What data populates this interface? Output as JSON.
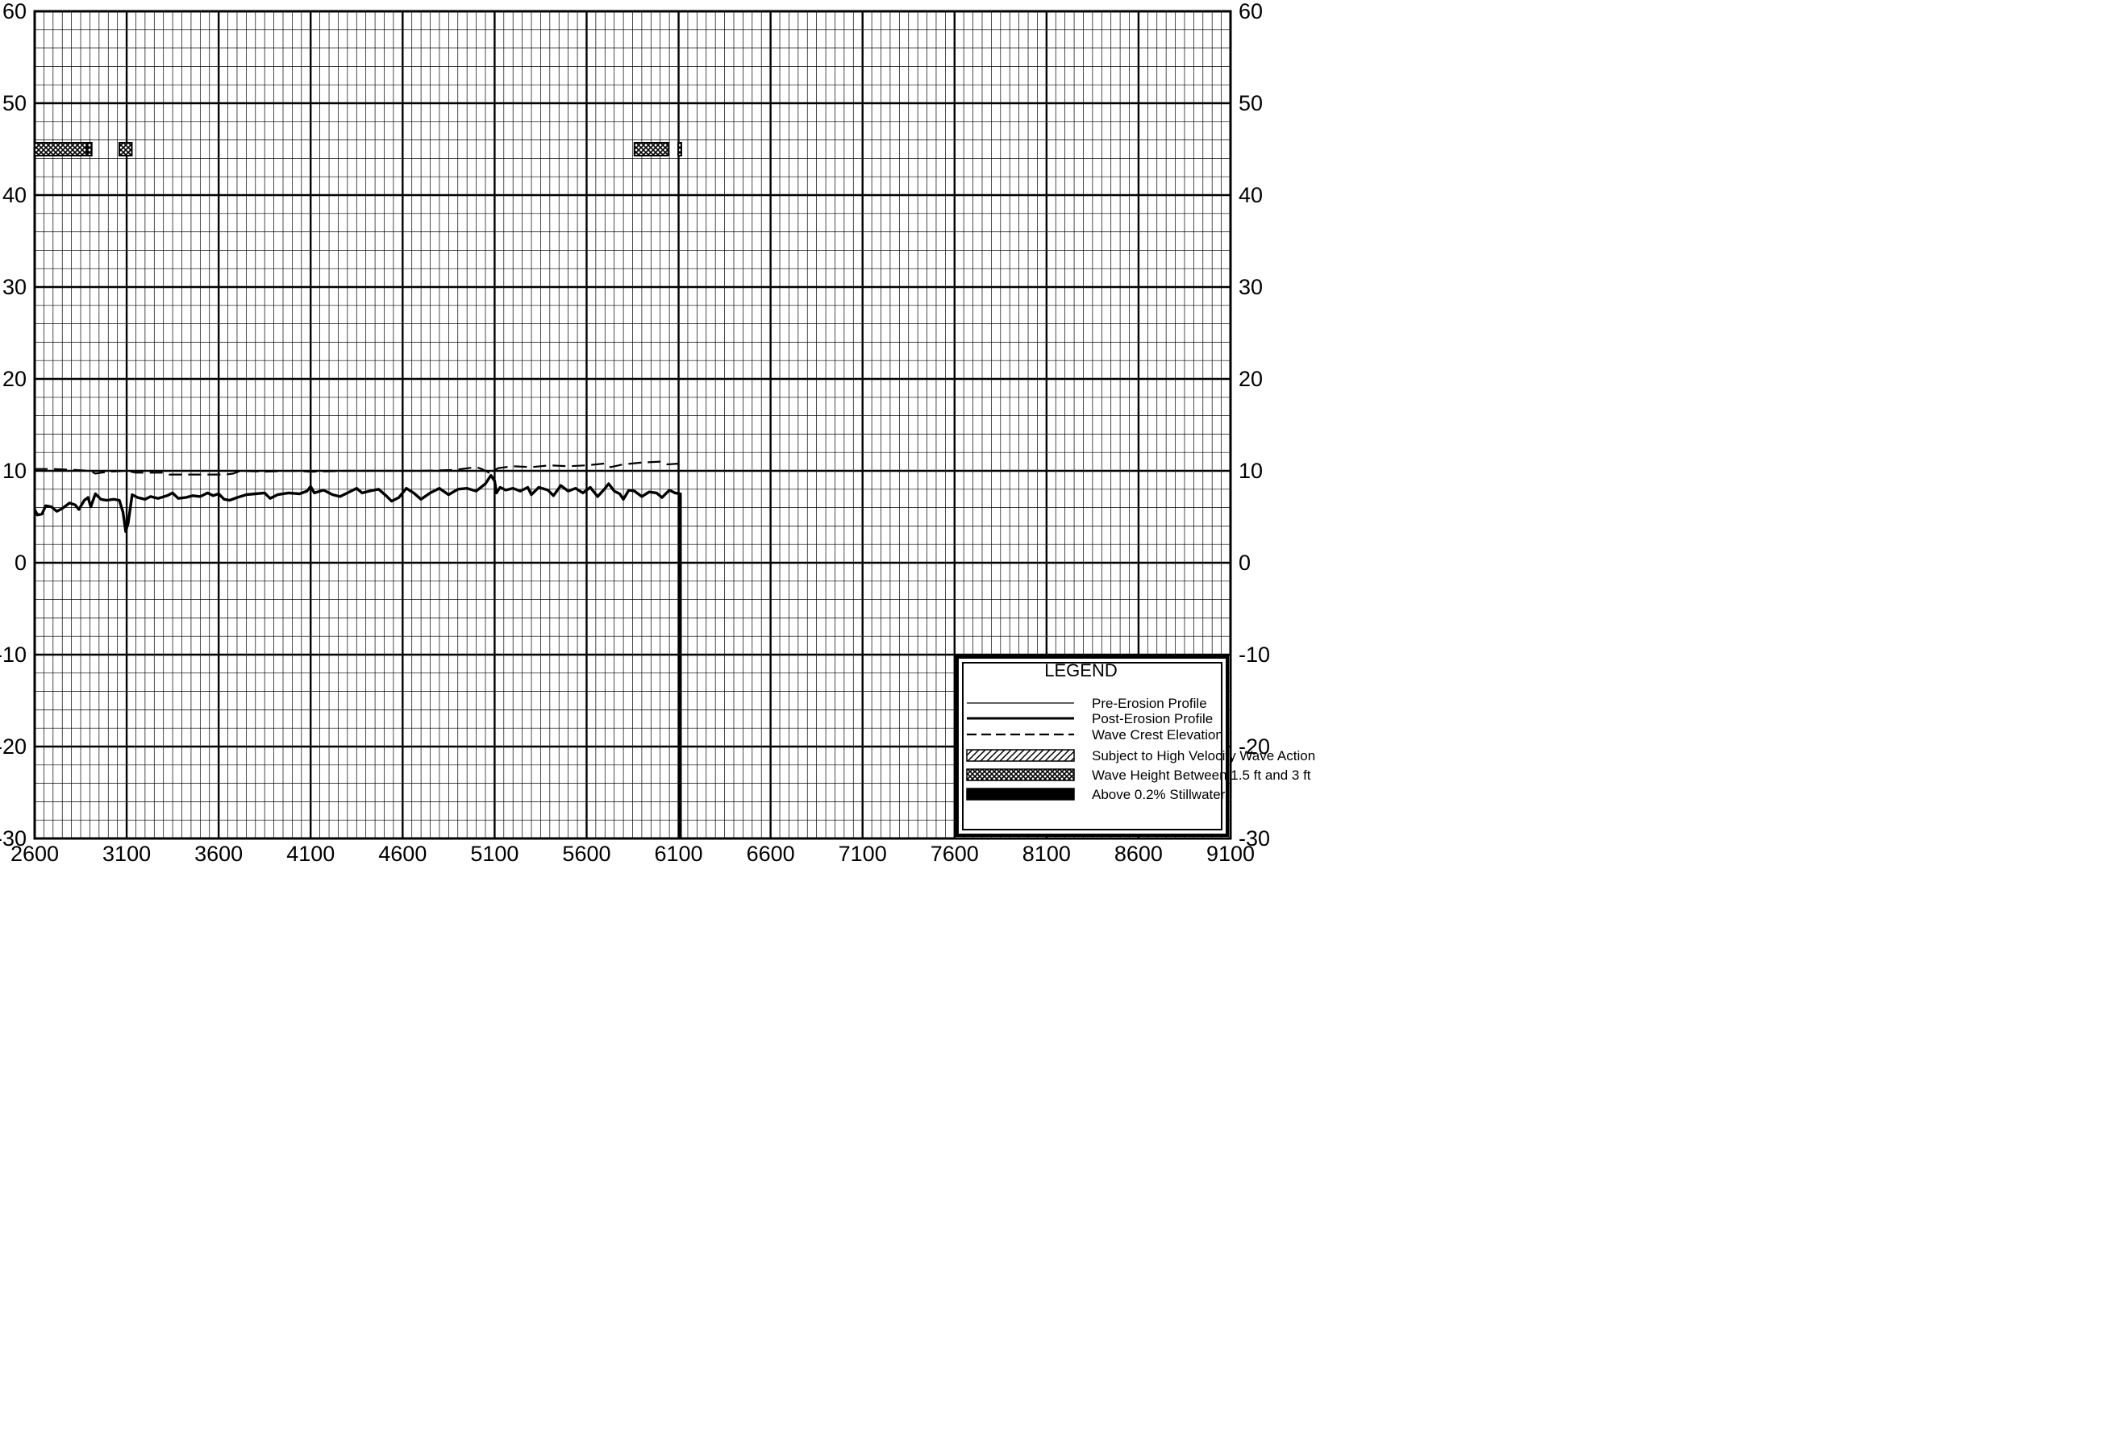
{
  "chart_data": {
    "type": "line",
    "title": "",
    "xlabel": "",
    "ylabel": "",
    "xlim": [
      2600,
      9100
    ],
    "ylim": [
      -30,
      60
    ],
    "x_major_step": 500,
    "y_major_step": 10,
    "x_minor_step": 50,
    "y_minor_step": 2,
    "grid": true,
    "x_ticks": [
      "2600",
      "3100",
      "3600",
      "4100",
      "4600",
      "5100",
      "5600",
      "6100",
      "6600",
      "7100",
      "7600",
      "8100",
      "8600",
      "9100"
    ],
    "y_ticks": [
      "60",
      "50",
      "40",
      "30",
      "20",
      "10",
      "0",
      "-10",
      "-20",
      "-30"
    ],
    "legend": {
      "title": "LEGEND",
      "placement": "bottom-right",
      "entries": [
        {
          "label": "Pre-Erosion Profile",
          "style": "thin-line"
        },
        {
          "label": "Post-Erosion Profile",
          "style": "thick-line"
        },
        {
          "label": "Wave Crest Elevation",
          "style": "dashed-line"
        },
        {
          "label": "Subject to High Velocity Wave Action",
          "style": "hatch"
        },
        {
          "label": "Wave Height Between 1.5 ft and 3 ft",
          "style": "crosshatch"
        },
        {
          "label": "Above 0.2% Stillwater",
          "style": "solid"
        }
      ]
    },
    "series": [
      {
        "name": "Post-Erosion Profile",
        "style": "thick-line",
        "points": [
          [
            2600,
            5.8
          ],
          [
            2615,
            5.2
          ],
          [
            2640,
            5.3
          ],
          [
            2660,
            6.2
          ],
          [
            2690,
            6.1
          ],
          [
            2720,
            5.6
          ],
          [
            2750,
            5.9
          ],
          [
            2790,
            6.5
          ],
          [
            2820,
            6.3
          ],
          [
            2840,
            5.8
          ],
          [
            2870,
            6.8
          ],
          [
            2890,
            7.1
          ],
          [
            2905,
            6.1
          ],
          [
            2930,
            7.5
          ],
          [
            2960,
            6.9
          ],
          [
            2990,
            6.8
          ],
          [
            3030,
            6.9
          ],
          [
            3060,
            6.8
          ],
          [
            3080,
            5.5
          ],
          [
            3095,
            3.4
          ],
          [
            3108,
            4.3
          ],
          [
            3130,
            7.4
          ],
          [
            3160,
            7.1
          ],
          [
            3200,
            6.9
          ],
          [
            3230,
            7.2
          ],
          [
            3270,
            7.0
          ],
          [
            3320,
            7.3
          ],
          [
            3350,
            7.6
          ],
          [
            3380,
            7.0
          ],
          [
            3420,
            7.1
          ],
          [
            3460,
            7.3
          ],
          [
            3500,
            7.2
          ],
          [
            3540,
            7.6
          ],
          [
            3570,
            7.3
          ],
          [
            3600,
            7.5
          ],
          [
            3630,
            6.9
          ],
          [
            3660,
            6.8
          ],
          [
            3700,
            7.1
          ],
          [
            3750,
            7.4
          ],
          [
            3800,
            7.5
          ],
          [
            3850,
            7.6
          ],
          [
            3880,
            7.0
          ],
          [
            3920,
            7.4
          ],
          [
            3980,
            7.6
          ],
          [
            4040,
            7.5
          ],
          [
            4080,
            7.8
          ],
          [
            4100,
            8.3
          ],
          [
            4120,
            7.6
          ],
          [
            4170,
            7.9
          ],
          [
            4220,
            7.4
          ],
          [
            4260,
            7.2
          ],
          [
            4300,
            7.6
          ],
          [
            4350,
            8.1
          ],
          [
            4380,
            7.6
          ],
          [
            4420,
            7.8
          ],
          [
            4470,
            8.0
          ],
          [
            4510,
            7.3
          ],
          [
            4540,
            6.7
          ],
          [
            4580,
            7.1
          ],
          [
            4620,
            8.1
          ],
          [
            4660,
            7.6
          ],
          [
            4700,
            6.9
          ],
          [
            4750,
            7.6
          ],
          [
            4800,
            8.1
          ],
          [
            4850,
            7.4
          ],
          [
            4900,
            8.0
          ],
          [
            4950,
            8.1
          ],
          [
            5000,
            7.8
          ],
          [
            5050,
            8.6
          ],
          [
            5080,
            9.5
          ],
          [
            5100,
            8.9
          ],
          [
            5110,
            7.6
          ],
          [
            5130,
            8.2
          ],
          [
            5160,
            7.9
          ],
          [
            5200,
            8.1
          ],
          [
            5240,
            7.8
          ],
          [
            5280,
            8.2
          ],
          [
            5300,
            7.4
          ],
          [
            5340,
            8.2
          ],
          [
            5390,
            7.9
          ],
          [
            5420,
            7.3
          ],
          [
            5460,
            8.4
          ],
          [
            5500,
            7.8
          ],
          [
            5540,
            8.1
          ],
          [
            5580,
            7.6
          ],
          [
            5620,
            8.2
          ],
          [
            5660,
            7.2
          ],
          [
            5700,
            8.1
          ],
          [
            5720,
            8.6
          ],
          [
            5750,
            7.8
          ],
          [
            5780,
            7.5
          ],
          [
            5800,
            6.9
          ],
          [
            5830,
            7.9
          ],
          [
            5860,
            7.8
          ],
          [
            5900,
            7.2
          ],
          [
            5940,
            7.7
          ],
          [
            5980,
            7.6
          ],
          [
            6010,
            7.1
          ],
          [
            6050,
            7.9
          ],
          [
            6080,
            7.6
          ],
          [
            6110,
            7.5
          ],
          [
            6110,
            -30
          ]
        ]
      },
      {
        "name": "Wave Crest Elevation",
        "style": "dashed-line",
        "points": [
          [
            2600,
            10.2
          ],
          [
            2700,
            10.2
          ],
          [
            2820,
            10.1
          ],
          [
            2900,
            10.0
          ],
          [
            2930,
            9.7
          ],
          [
            3000,
            9.9
          ],
          [
            3100,
            10.0
          ],
          [
            3150,
            9.8
          ],
          [
            3300,
            9.8
          ],
          [
            3330,
            9.6
          ],
          [
            3640,
            9.6
          ],
          [
            3680,
            9.7
          ],
          [
            3720,
            10.0
          ],
          [
            3850,
            9.9
          ],
          [
            4000,
            10.0
          ],
          [
            4100,
            9.9
          ],
          [
            4300,
            10.0
          ],
          [
            4500,
            10.0
          ],
          [
            4700,
            10.0
          ],
          [
            4880,
            10.1
          ],
          [
            5000,
            10.4
          ],
          [
            5030,
            10.2
          ],
          [
            5070,
            9.8
          ],
          [
            5120,
            10.3
          ],
          [
            5200,
            10.5
          ],
          [
            5300,
            10.4
          ],
          [
            5400,
            10.6
          ],
          [
            5500,
            10.5
          ],
          [
            5600,
            10.6
          ],
          [
            5700,
            10.8
          ],
          [
            5730,
            10.4
          ],
          [
            5800,
            10.7
          ],
          [
            5900,
            10.9
          ],
          [
            6000,
            11.0
          ],
          [
            6040,
            10.7
          ],
          [
            6110,
            10.8
          ]
        ]
      }
    ],
    "zones": [
      {
        "name": "Wave Height Between 1.5 ft and 3 ft",
        "elevation": 45,
        "x": [
          2600,
          2882
        ]
      },
      {
        "name": "Wave Height Between 1.5 ft and 3 ft",
        "elevation": 45,
        "x": [
          2887,
          2910
        ]
      },
      {
        "name": "Wave Height Between 1.5 ft and 3 ft",
        "elevation": 45,
        "x": [
          3060,
          3128
        ]
      },
      {
        "name": "Wave Height Between 1.5 ft and 3 ft",
        "elevation": 45,
        "x": [
          5860,
          6044
        ]
      },
      {
        "name": "Wave Height Between 1.5 ft and 3 ft",
        "elevation": 45,
        "x": [
          6098,
          6115
        ]
      }
    ]
  }
}
